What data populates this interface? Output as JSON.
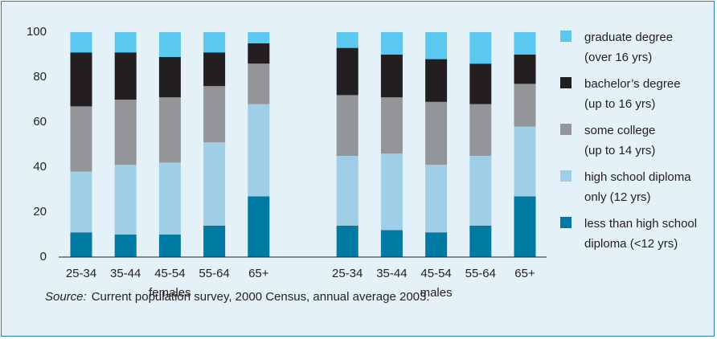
{
  "chart_data": {
    "type": "stacked_bar",
    "categories": [
      "25-34",
      "35-44",
      "45-54",
      "55-64",
      "65+",
      "25-34",
      "35-44",
      "45-54",
      "55-64",
      "65+"
    ],
    "groups": [
      "females",
      "males"
    ],
    "series": [
      {
        "name": "graduate degree\n(over 16 yrs)",
        "color": "#5bc8f0",
        "values": [
          9,
          9,
          11,
          9,
          5,
          7,
          10,
          12,
          14,
          10
        ]
      },
      {
        "name": "bachelor’s degree\n(up to 16 yrs)",
        "color": "#231f20",
        "values": [
          24,
          21,
          18,
          15,
          9,
          21,
          19,
          19,
          18,
          13
        ]
      },
      {
        "name": "some college\n(up to 14 yrs)",
        "color": "#939598",
        "values": [
          29,
          29,
          29,
          25,
          18,
          27,
          25,
          28,
          23,
          19
        ]
      },
      {
        "name": "high school diploma\nonly (12 yrs)",
        "color": "#9fcfe6",
        "values": [
          27,
          31,
          32,
          37,
          41,
          31,
          34,
          30,
          31,
          31
        ]
      },
      {
        "name": "less than high school\ndiploma (<12 yrs)",
        "color": "#0079a3",
        "values": [
          11,
          10,
          10,
          14,
          27,
          14,
          12,
          11,
          14,
          27
        ]
      }
    ],
    "ylim": [
      0,
      100
    ],
    "yticks": [
      0,
      20,
      40,
      60,
      80,
      100
    ],
    "source_label": "Source:",
    "source": "Current population survey, 2000 Census, annual average 2003."
  }
}
